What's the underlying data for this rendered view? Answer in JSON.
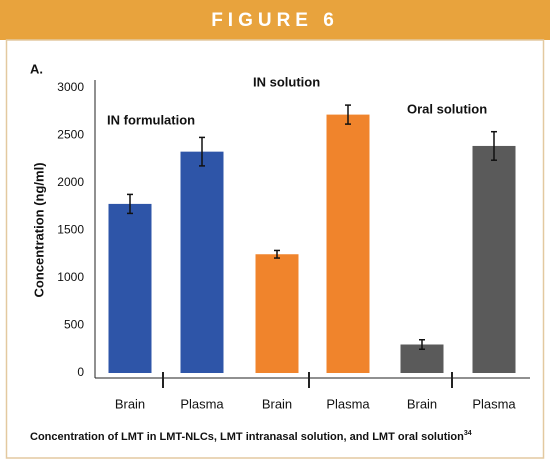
{
  "chart_data": {
    "type": "bar",
    "header": "FIGURE 6",
    "panel_label": "A.",
    "ylabel": "Concentration (ng/ml)",
    "group_labels": [
      "IN formulation",
      "IN solution",
      "Oral solution"
    ],
    "categories": [
      "Brain",
      "Plasma",
      "Brain",
      "Plasma",
      "Brain",
      "Plasma"
    ],
    "values": [
      1780,
      2330,
      1250,
      2720,
      300,
      2390
    ],
    "errors": [
      100,
      150,
      40,
      100,
      50,
      150
    ],
    "colors": [
      "#2e55a8",
      "#2e55a8",
      "#f0842c",
      "#f0842c",
      "#5a5a5a",
      "#5a5a5a"
    ],
    "ylim": [
      0,
      3000
    ],
    "yticks": [
      0,
      500,
      1000,
      1500,
      2000,
      2500,
      3000
    ],
    "caption": "Concentration of LMT in LMT-NLCs, LMT intranasal solution, and LMT oral solution",
    "caption_ref": "34"
  }
}
